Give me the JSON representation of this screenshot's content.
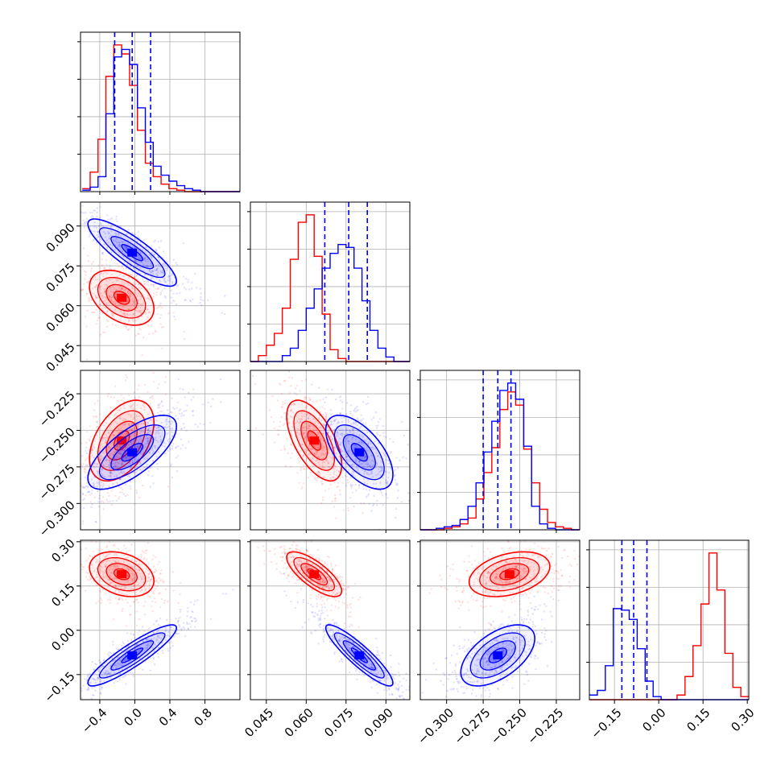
{
  "chart_data": {
    "type": "corner",
    "title": "",
    "series": [
      {
        "color": "#ff0000"
      },
      {
        "color": "#0000ff"
      }
    ],
    "parameters": [
      {
        "ticks": [
          -0.4,
          0.0,
          0.4,
          0.8
        ],
        "tick_labels": [
          "−0.4",
          "0.0",
          "0.4",
          "0.8"
        ],
        "range": [
          -0.62,
          1.2
        ]
      },
      {
        "ticks": [
          0.045,
          0.06,
          0.075,
          0.09
        ],
        "tick_labels": [
          "0.045",
          "0.060",
          "0.075",
          "0.090"
        ],
        "range": [
          0.039,
          0.099
        ]
      },
      {
        "ticks": [
          -0.3,
          -0.275,
          -0.25,
          -0.225
        ],
        "tick_labels": [
          "−0.300",
          "−0.275",
          "−0.250",
          "−0.225"
        ],
        "range": [
          -0.318,
          -0.209
        ]
      },
      {
        "ticks": [
          -0.15,
          0.0,
          0.15,
          0.3
        ],
        "tick_labels": [
          "−0.15",
          "0.00",
          "0.15",
          "0.30"
        ],
        "range": [
          -0.235,
          0.305
        ]
      }
    ],
    "blue_quantiles": [
      [
        -0.23,
        -0.03,
        0.18
      ],
      [
        0.067,
        0.076,
        0.083
      ],
      [
        -0.275,
        -0.265,
        -0.256
      ],
      [
        -0.125,
        -0.085,
        -0.04
      ]
    ],
    "histograms": [
      {
        "bin_edges": [
          -0.6,
          -0.51,
          -0.42,
          -0.33,
          -0.24,
          -0.15,
          -0.06,
          0.03,
          0.12,
          0.21,
          0.3,
          0.39,
          0.48,
          0.57,
          0.66,
          0.75,
          0.84,
          0.93,
          1.02,
          1.11,
          1.2
        ],
        "red": [
          2,
          13,
          35,
          77,
          98,
          92,
          71,
          41,
          19,
          10,
          5,
          2,
          1,
          0,
          0,
          0,
          0,
          0,
          0,
          0
        ],
        "blue": [
          1,
          3,
          10,
          52,
          90,
          95,
          85,
          56,
          33,
          17,
          11,
          7,
          4,
          2,
          1,
          0,
          0,
          0,
          0,
          0
        ]
      },
      {
        "bin_edges": [
          0.039,
          0.042,
          0.045,
          0.048,
          0.051,
          0.054,
          0.057,
          0.06,
          0.063,
          0.066,
          0.069,
          0.072,
          0.075,
          0.078,
          0.081,
          0.084,
          0.087,
          0.09,
          0.093,
          0.096,
          0.099
        ],
        "red": [
          0,
          4,
          11,
          19,
          36,
          69,
          94,
          99,
          71,
          32,
          8,
          2,
          0,
          0,
          0,
          0,
          0,
          0,
          0,
          0
        ],
        "blue": [
          0,
          0,
          0,
          0,
          4,
          9,
          21,
          36,
          49,
          63,
          73,
          79,
          77,
          63,
          41,
          21,
          9,
          3,
          0,
          0
        ]
      },
      {
        "bin_edges": [
          -0.318,
          -0.3126,
          -0.3071,
          -0.3017,
          -0.2963,
          -0.2908,
          -0.2854,
          -0.2799,
          -0.2745,
          -0.2691,
          -0.2636,
          -0.2582,
          -0.2528,
          -0.2473,
          -0.2419,
          -0.2364,
          -0.231,
          -0.2256,
          -0.2201,
          -0.2147,
          -0.209
        ],
        "red": [
          0,
          0,
          0,
          1,
          2,
          4,
          8,
          21,
          39,
          56,
          82,
          94,
          85,
          55,
          32,
          14,
          5,
          2,
          1,
          0
        ],
        "blue": [
          0,
          0,
          1,
          2,
          3,
          7,
          16,
          32,
          53,
          74,
          95,
          100,
          89,
          57,
          16,
          4,
          1,
          0,
          0,
          0
        ]
      },
      {
        "bin_edges": [
          -0.235,
          -0.208,
          -0.181,
          -0.154,
          -0.127,
          -0.1,
          -0.073,
          -0.046,
          -0.019,
          0.008,
          0.035,
          0.062,
          0.089,
          0.116,
          0.143,
          0.17,
          0.197,
          0.224,
          0.251,
          0.278,
          0.305
        ],
        "red": [
          0,
          0,
          0,
          0,
          0,
          0,
          0,
          0,
          0,
          0,
          0,
          3,
          15,
          35,
          62,
          95,
          71,
          30,
          8,
          2
        ],
        "blue": [
          3,
          6,
          22,
          59,
          58,
          52,
          33,
          12,
          2,
          0,
          0,
          0,
          0,
          0,
          0,
          0,
          0,
          0,
          0,
          0
        ]
      }
    ],
    "distributions": {
      "red": {
        "mean": [
          -0.15,
          0.063,
          -0.257,
          0.19
        ],
        "sd": [
          0.16,
          0.0045,
          0.012,
          0.033
        ]
      },
      "blue": {
        "mean": [
          -0.03,
          0.08,
          -0.265,
          -0.085
        ],
        "sd": [
          0.22,
          0.0055,
          0.011,
          0.045
        ]
      }
    },
    "correlations": {
      "red": [
        [
          1,
          -0.4,
          0.45,
          -0.3
        ],
        [
          -0.4,
          1,
          -0.6,
          -0.75
        ],
        [
          0.45,
          -0.6,
          1,
          0.35
        ],
        [
          -0.3,
          -0.75,
          0.35,
          1
        ]
      ],
      "blue": [
        [
          1,
          -0.85,
          0.7,
          0.9
        ],
        [
          -0.85,
          1,
          -0.6,
          -0.9
        ],
        [
          0.7,
          -0.6,
          1,
          0.55
        ],
        [
          0.9,
          -0.9,
          0.55,
          1
        ]
      ]
    },
    "grid": true,
    "legend": "none"
  }
}
